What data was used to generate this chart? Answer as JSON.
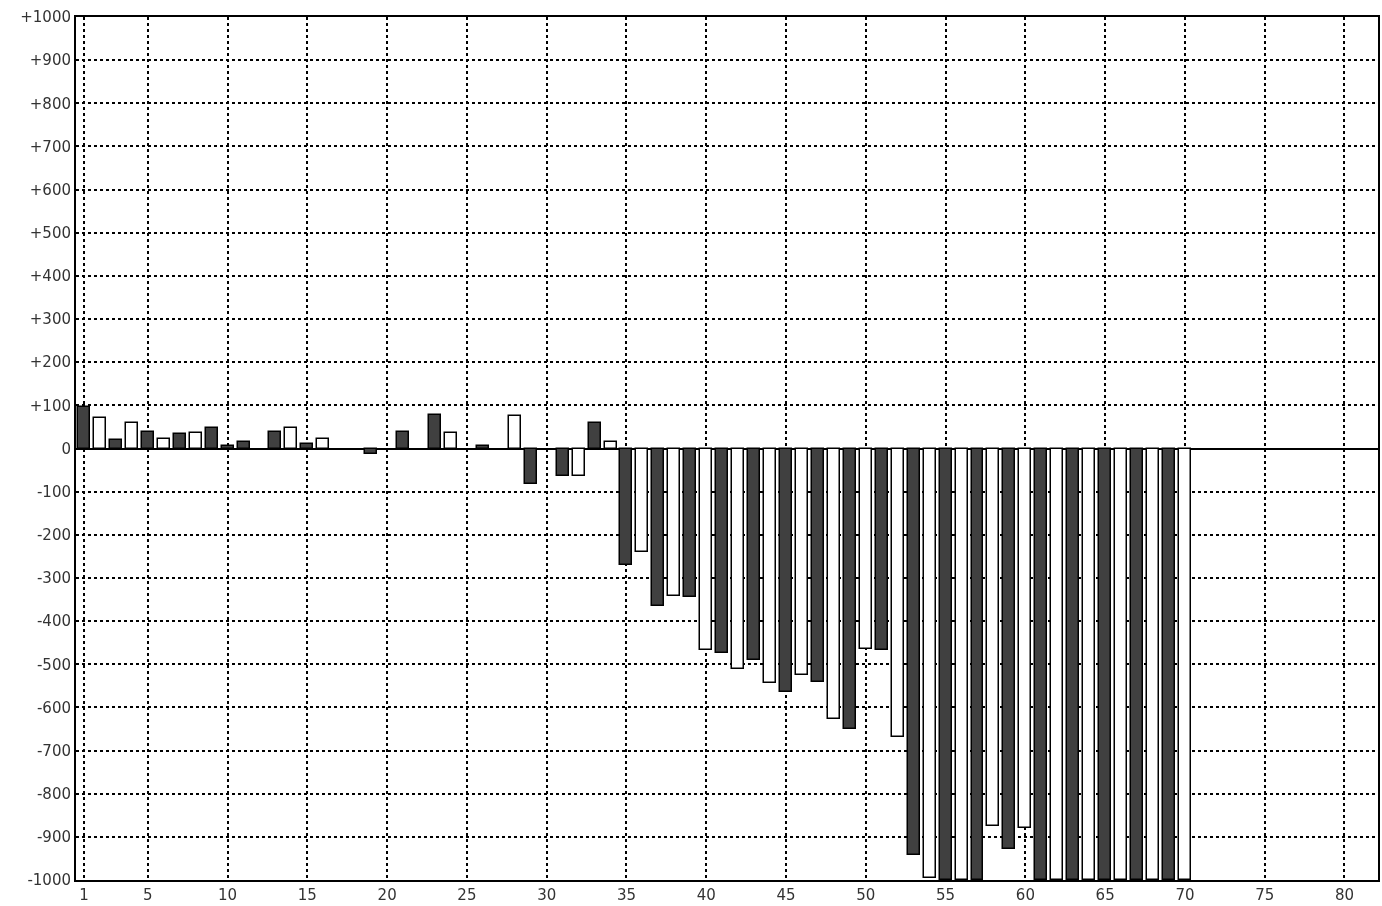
{
  "chart_data": {
    "type": "bar",
    "x": [
      1,
      2,
      3,
      4,
      5,
      6,
      7,
      8,
      9,
      10,
      11,
      12,
      13,
      14,
      15,
      16,
      17,
      18,
      19,
      20,
      21,
      22,
      23,
      24,
      25,
      26,
      27,
      28,
      29,
      30,
      31,
      32,
      33,
      34,
      35,
      36,
      37,
      38,
      39,
      40,
      41,
      42,
      43,
      44,
      45,
      46,
      47,
      48,
      49,
      50,
      51,
      52,
      53,
      54,
      55,
      56,
      57,
      58,
      59,
      60,
      61,
      62,
      63,
      64,
      65,
      66,
      67,
      68,
      69,
      70
    ],
    "values": [
      97,
      70,
      20,
      60,
      38,
      22,
      33,
      37,
      48,
      5,
      15,
      null,
      38,
      47,
      10,
      23,
      null,
      null,
      -12,
      null,
      38,
      null,
      77,
      37,
      null,
      5,
      null,
      75,
      -83,
      null,
      -63,
      -63,
      58,
      15,
      -270,
      -240,
      -366,
      -341,
      -343,
      -466,
      -473,
      -512,
      -491,
      -543,
      -564,
      -525,
      -541,
      -626,
      -651,
      -464,
      -467,
      -668,
      -941,
      -995,
      -1000,
      -1000,
      -1000,
      -875,
      -927,
      -879,
      -1000,
      -1000,
      -1000,
      -1000,
      -1000,
      -1000,
      -1000,
      -1000,
      -1000,
      -1000
    ],
    "colors": [
      "#404040",
      "#ffffff",
      "#404040",
      "#ffffff",
      "#404040",
      "#ffffff",
      "#404040",
      "#ffffff",
      "#404040",
      "#404040",
      "#404040",
      null,
      "#404040",
      "#ffffff",
      "#404040",
      "#ffffff",
      null,
      null,
      "#404040",
      null,
      "#404040",
      null,
      "#404040",
      "#ffffff",
      null,
      "#404040",
      null,
      "#ffffff",
      "#404040",
      null,
      "#404040",
      "#ffffff",
      "#404040",
      "#ffffff",
      "#404040",
      "#ffffff",
      "#404040",
      "#ffffff",
      "#404040",
      "#ffffff",
      "#404040",
      "#ffffff",
      "#404040",
      "#ffffff",
      "#404040",
      "#ffffff",
      "#404040",
      "#ffffff",
      "#404040",
      "#ffffff",
      "#404040",
      "#ffffff",
      "#404040",
      "#ffffff",
      "#404040",
      "#ffffff",
      "#404040",
      "#ffffff",
      "#404040",
      "#ffffff",
      "#404040",
      "#ffffff",
      "#404040",
      "#ffffff",
      "#404040",
      "#ffffff",
      "#404040",
      "#ffffff",
      "#404040",
      "#ffffff"
    ],
    "xlim": [
      0.5,
      82.1
    ],
    "xticks": [
      1,
      5,
      10,
      15,
      20,
      25,
      30,
      35,
      40,
      45,
      50,
      55,
      60,
      65,
      70,
      75,
      80
    ],
    "ylim": [
      -1000,
      1000
    ],
    "yticks": [
      {
        "value": 1000,
        "label": "+1000"
      },
      {
        "value": 900,
        "label": "+900"
      },
      {
        "value": 800,
        "label": "+800"
      },
      {
        "value": 700,
        "label": "+700"
      },
      {
        "value": 600,
        "label": "+600"
      },
      {
        "value": 500,
        "label": "+500"
      },
      {
        "value": 400,
        "label": "+400"
      },
      {
        "value": 300,
        "label": "+300"
      },
      {
        "value": 200,
        "label": "+200"
      },
      {
        "value": 100,
        "label": "+100"
      },
      0,
      -100,
      -200,
      -300,
      -400,
      -500,
      -600,
      -700,
      -800,
      -900,
      -1000
    ],
    "grid": true
  }
}
